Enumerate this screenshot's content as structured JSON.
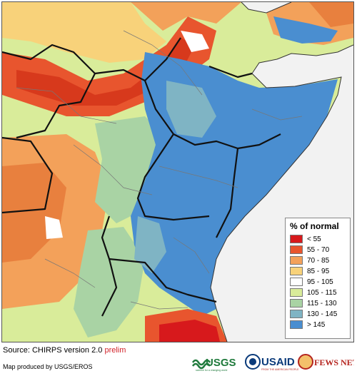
{
  "legend": {
    "title": "% of normal",
    "items": [
      {
        "label": "< 55",
        "color": "#d7191c"
      },
      {
        "label": "55 - 70",
        "color": "#e8552e"
      },
      {
        "label": "70 - 85",
        "color": "#f3a15a"
      },
      {
        "label": "85 - 95",
        "color": "#f8d27a"
      },
      {
        "label": "95 - 105",
        "color": "#ffffff"
      },
      {
        "label": "105 - 115",
        "color": "#d9ec9a"
      },
      {
        "label": "115 - 130",
        "color": "#a9d3a4"
      },
      {
        "label": "130 - 145",
        "color": "#7fb4c4"
      },
      {
        "label": "> 145",
        "color": "#4a8ed0"
      }
    ]
  },
  "source": {
    "prefix": "Source: CHIRPS version 2.0 ",
    "prelim": "prelim"
  },
  "producer": "Map produced by USGS/EROS",
  "logos": {
    "usgs": "USGS",
    "usgs_tagline": "science for a changing world",
    "usaid": "USAID",
    "usaid_tagline": "FROM THE AMERICAN PEOPLE",
    "fewsnet": "FEWS NET"
  },
  "colors": {
    "sea": "#f2f2f2",
    "border": "#111111",
    "prelim": "#d2232a",
    "usgs_green": "#1f7a3c",
    "usaid_blue": "#0a3a7a",
    "fews_red": "#b5251f"
  }
}
